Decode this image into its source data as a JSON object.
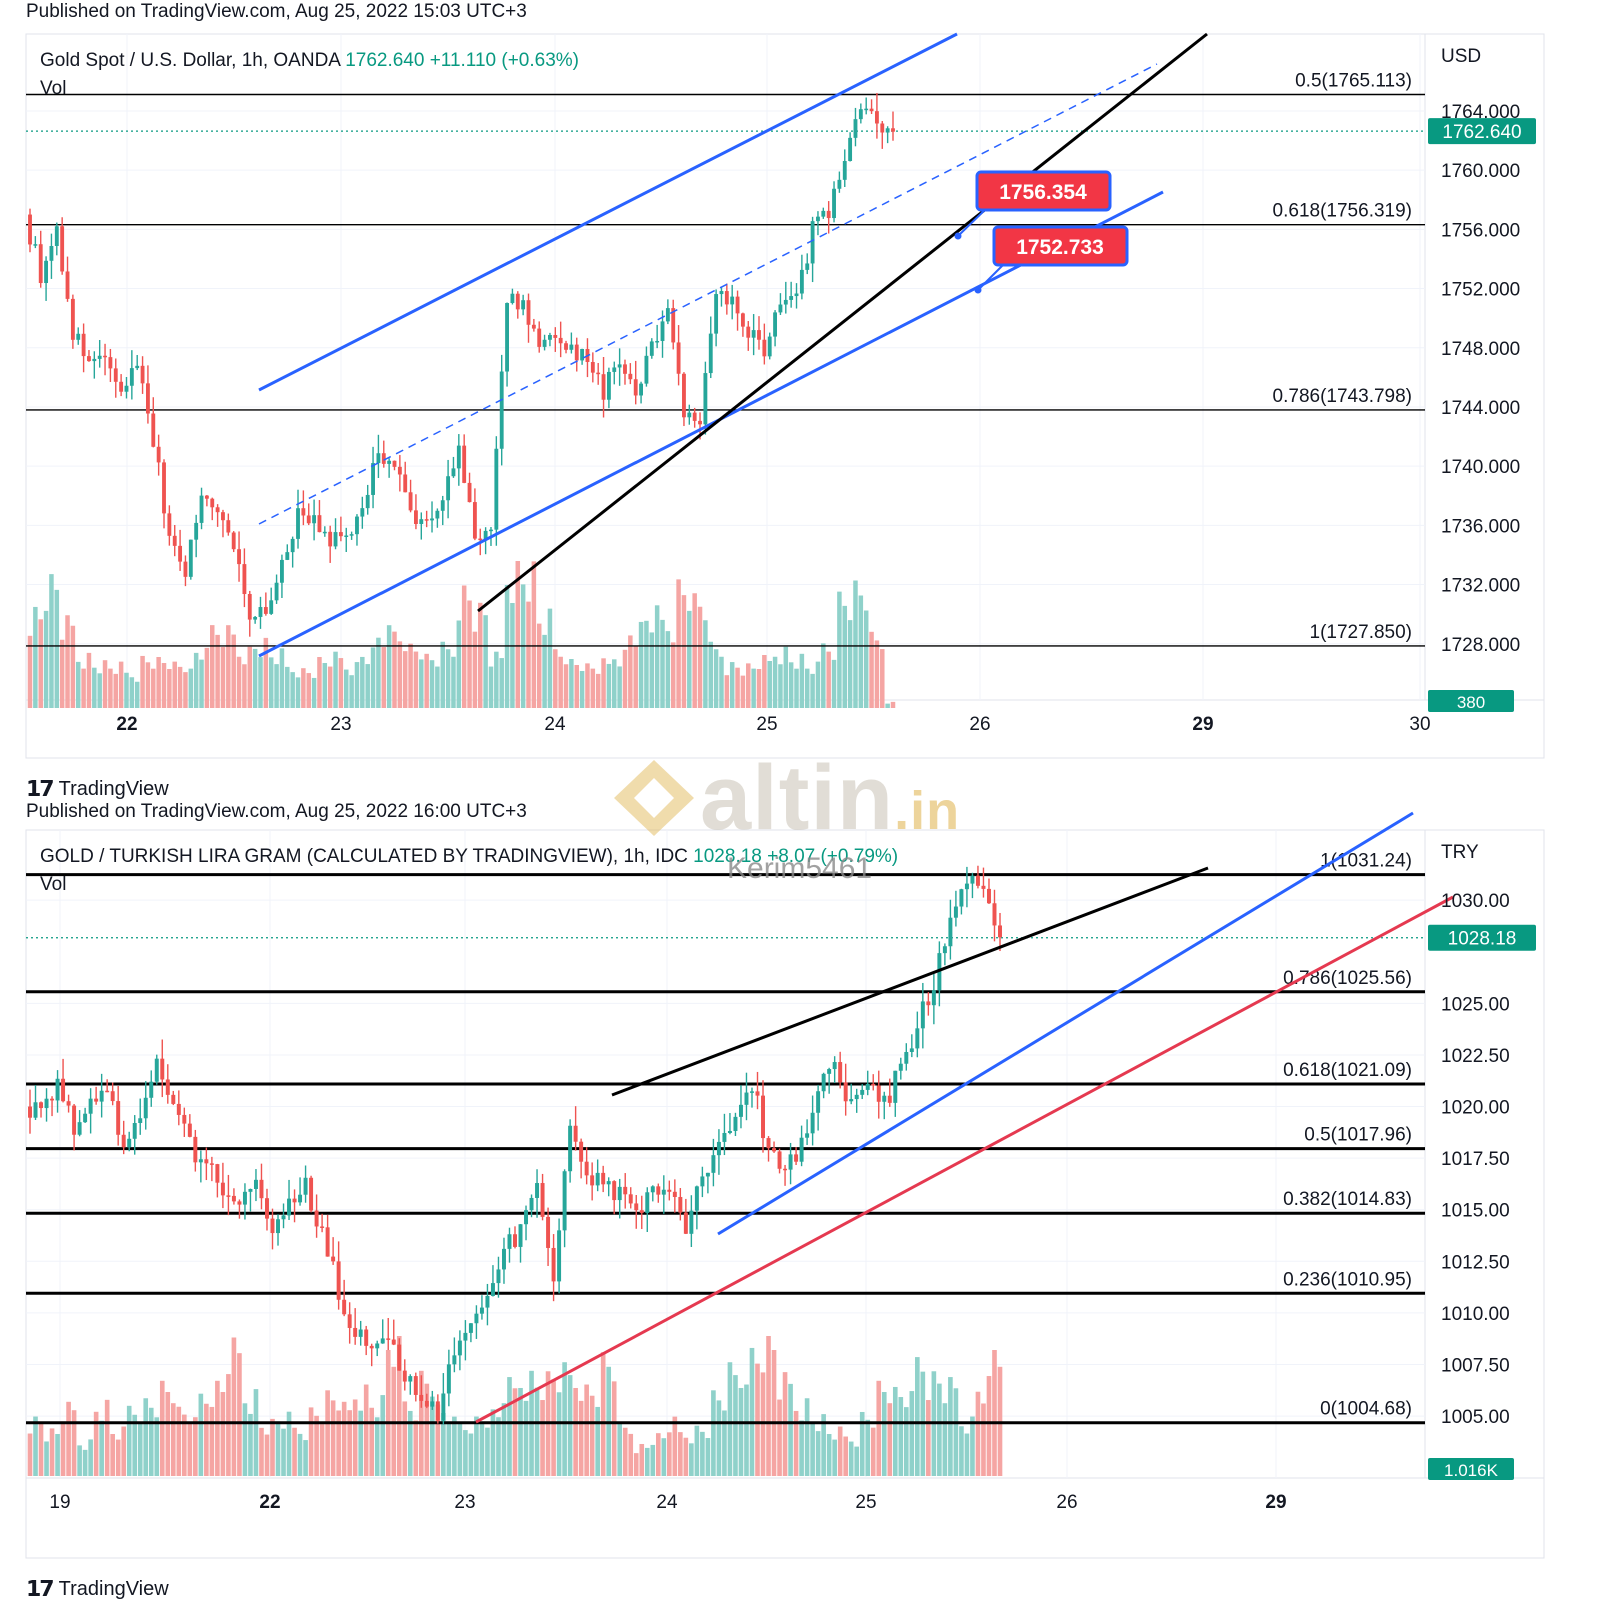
{
  "colors": {
    "up": "#26a69a",
    "down": "#ef5350",
    "up_vol": "#8fd1ca",
    "down_vol": "#f5a5a3",
    "channel": "#2962ff",
    "black": "#000000",
    "red_line": "#e53950",
    "label_red": "#f23645",
    "price_green": "#089981"
  },
  "watermark": {
    "text": "altin",
    "suffix": ".in",
    "user": "Kerim5461"
  },
  "brand": "TradingView",
  "chart_data": [
    {
      "type": "candlestick",
      "published": "Published on TradingView.com, Aug 25, 2022 15:03 UTC+3",
      "symbol": "Gold Spot / U.S. Dollar, 1h, OANDA",
      "last": "1762.640",
      "change": "+11.110 (+0.63%)",
      "vol_label": "Vol",
      "currency": "USD",
      "price_tag": "1762.640",
      "vol_tag": "380",
      "y_ticks": [
        "1764.000",
        "1760.000",
        "1756.000",
        "1752.000",
        "1748.000",
        "1744.000",
        "1740.000",
        "1736.000",
        "1732.000",
        "1728.000"
      ],
      "x_ticks": [
        {
          "label": "22",
          "bold": true
        },
        {
          "label": "23",
          "bold": false
        },
        {
          "label": "24",
          "bold": false
        },
        {
          "label": "25",
          "bold": false
        },
        {
          "label": "26",
          "bold": false
        },
        {
          "label": "29",
          "bold": true
        },
        {
          "label": "30",
          "bold": false
        }
      ],
      "fib_levels": [
        "0.5(1765.113)",
        "0.618(1756.319)",
        "0.786(1743.798)",
        "1(1727.850)"
      ],
      "callouts": [
        "1756.354",
        "1752.733"
      ],
      "ylim": [
        1724.2,
        1769.2
      ],
      "fib_values": [
        1765.113,
        1756.319,
        1743.798,
        1727.85
      ],
      "last_value": 1762.64,
      "anchors": [
        1757,
        1753,
        1756,
        1749,
        1747,
        1747,
        1745,
        1747,
        1742,
        1735,
        1733,
        1738,
        1737,
        1735,
        1730,
        1730,
        1733,
        1737,
        1736,
        1735,
        1735,
        1737,
        1741,
        1740,
        1737,
        1736,
        1738,
        1741,
        1735,
        1736,
        1751,
        1751,
        1748,
        1749,
        1748,
        1747,
        1745,
        1747,
        1745,
        1748,
        1751,
        1744,
        1743,
        1752,
        1751,
        1749,
        1748,
        1751,
        1751,
        1756,
        1757,
        1761,
        1764,
        1763,
        1762.6
      ],
      "volumes": [
        330,
        420,
        280,
        180,
        150,
        140,
        120,
        170,
        160,
        140,
        180,
        260,
        250,
        200,
        220,
        180,
        140,
        130,
        160,
        170,
        150,
        190,
        250,
        260,
        210,
        170,
        200,
        400,
        330,
        170,
        480,
        460,
        300,
        200,
        160,
        140,
        150,
        190,
        270,
        310,
        300,
        420,
        360,
        200,
        150,
        140,
        160,
        200,
        170,
        140,
        220,
        380,
        400,
        230,
        20
      ]
    },
    {
      "type": "candlestick",
      "published": "Published on TradingView.com, Aug 25, 2022 16:00 UTC+3",
      "symbol": "GOLD / TURKISH LIRA GRAM (CALCULATED BY TRADINGVIEW), 1h, IDC",
      "last": "1028.18",
      "change": "+8.07 (+0.79%)",
      "vol_label": "Vol",
      "currency": "TRY",
      "price_tag": "1028.18",
      "vol_tag": "1.016K",
      "y_ticks": [
        "1030.00",
        "1025.00",
        "1022.50",
        "1020.00",
        "1017.50",
        "1015.00",
        "1012.50",
        "1010.00",
        "1007.50",
        "1005.00"
      ],
      "x_ticks": [
        {
          "label": "19",
          "bold": false
        },
        {
          "label": "22",
          "bold": true
        },
        {
          "label": "23",
          "bold": false
        },
        {
          "label": "24",
          "bold": false
        },
        {
          "label": "25",
          "bold": false
        },
        {
          "label": "26",
          "bold": false
        },
        {
          "label": "29",
          "bold": true
        }
      ],
      "fib_levels": [
        "1(1031.24)",
        "0.786(1025.56)",
        "0.618(1021.09)",
        "0.5(1017.96)",
        "0.382(1014.83)",
        "0.236(1010.95)",
        "0(1004.68)"
      ],
      "ylim": [
        1002.0,
        1033.4
      ],
      "fib_values": [
        1031.24,
        1025.56,
        1021.09,
        1017.96,
        1014.83,
        1010.95,
        1004.68
      ],
      "last_value": 1028.18,
      "anchors": [
        1020,
        1020,
        1021,
        1019,
        1020,
        1021,
        1018,
        1019,
        1022,
        1020,
        1018,
        1017,
        1016,
        1015,
        1016,
        1014,
        1015,
        1016,
        1014,
        1011,
        1009,
        1008,
        1009,
        1007,
        1006,
        1005,
        1008,
        1010,
        1011,
        1013,
        1014,
        1016,
        1012,
        1019,
        1017,
        1016,
        1016,
        1015,
        1016,
        1016,
        1014,
        1017,
        1018,
        1019,
        1021,
        1018,
        1017,
        1018,
        1021,
        1022,
        1020,
        1021,
        1020,
        1022,
        1024,
        1026,
        1029,
        1031,
        1030,
        1028.2
      ],
      "volumes": [
        130,
        100,
        150,
        80,
        160,
        100,
        160,
        170,
        200,
        140,
        180,
        200,
        280,
        190,
        120,
        130,
        110,
        150,
        180,
        150,
        200,
        170,
        300,
        170,
        230,
        150,
        120,
        130,
        140,
        200,
        230,
        220,
        230,
        230,
        200,
        260,
        110,
        70,
        90,
        120,
        100,
        110,
        180,
        230,
        280,
        300,
        210,
        170,
        130,
        100,
        90,
        140,
        200,
        180,
        260,
        220,
        200,
        130,
        210,
        300
      ]
    }
  ]
}
